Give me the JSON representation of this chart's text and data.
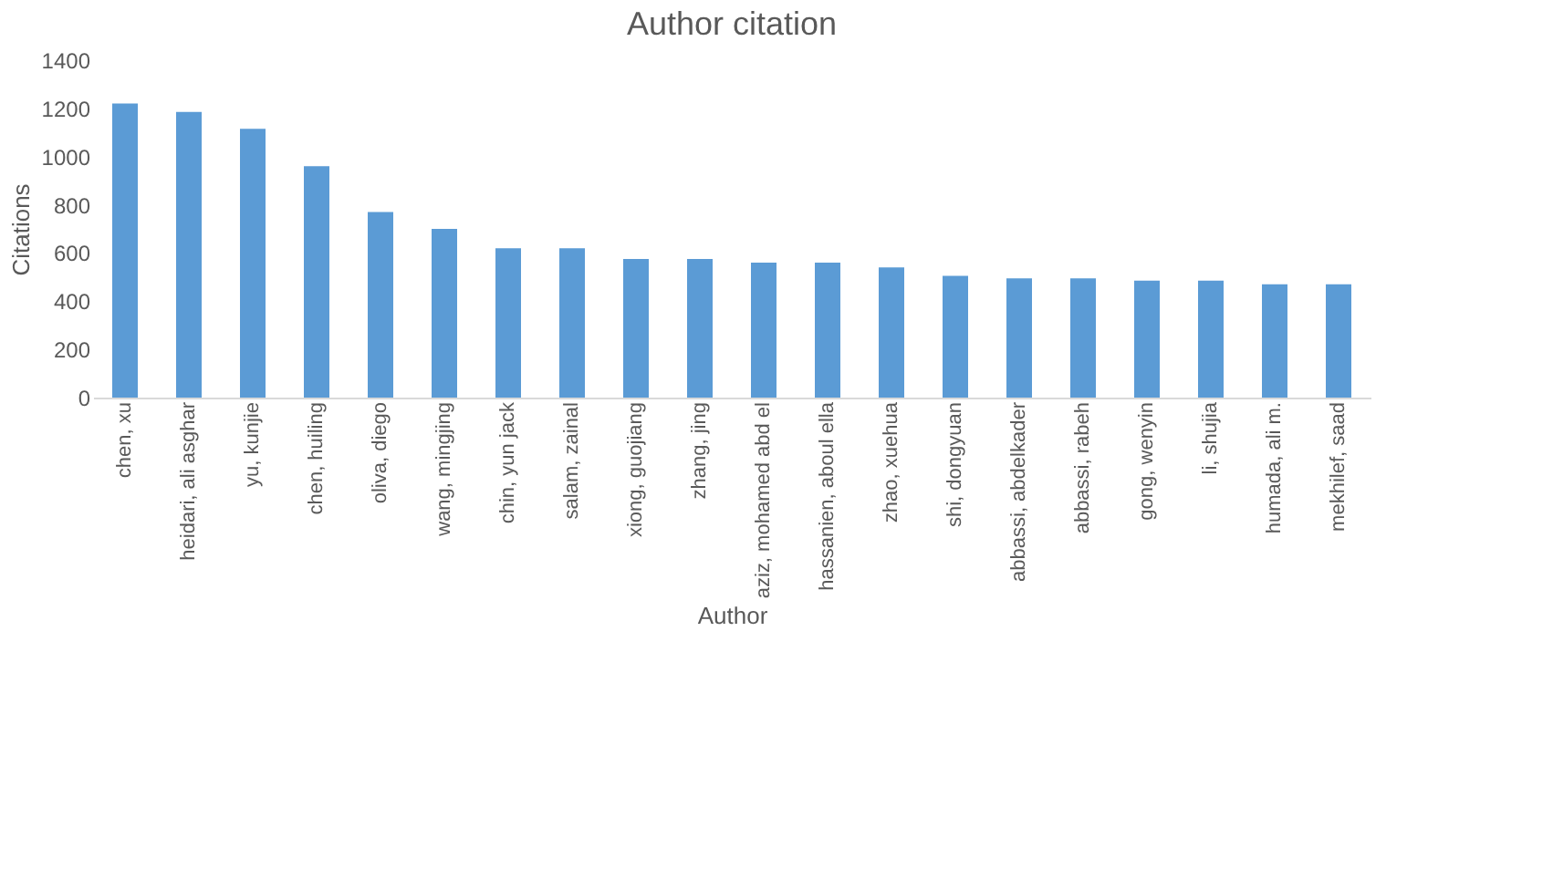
{
  "chart_data": {
    "type": "bar",
    "title": "Author citation",
    "xlabel": "Author",
    "ylabel": "Citations",
    "categories": [
      "chen, xu",
      "heidari, ali asghar",
      "yu, kunjie",
      "chen, huiling",
      "oliva, diego",
      "wang, mingjing",
      "chin, yun jack",
      "salam, zainal",
      "xiong, guojiang",
      "zhang, jing",
      "aziz, mohamed abd el",
      "hassanien, aboul ella",
      "zhao, xuehua",
      "shi, dongyuan",
      "abbassi, abdelkader",
      "abbassi, rabeh",
      "gong, wenyin",
      "li, shujia",
      "humada, ali m.",
      "mekhilef, saad"
    ],
    "values": [
      1220,
      1185,
      1115,
      960,
      770,
      700,
      620,
      620,
      575,
      575,
      560,
      560,
      540,
      505,
      495,
      495,
      485,
      485,
      470,
      470
    ],
    "color": "#5b9bd5",
    "ylim": [
      0,
      1400
    ],
    "yticks": [
      0,
      200,
      400,
      600,
      800,
      1000,
      1200,
      1400
    ],
    "grid": false
  }
}
